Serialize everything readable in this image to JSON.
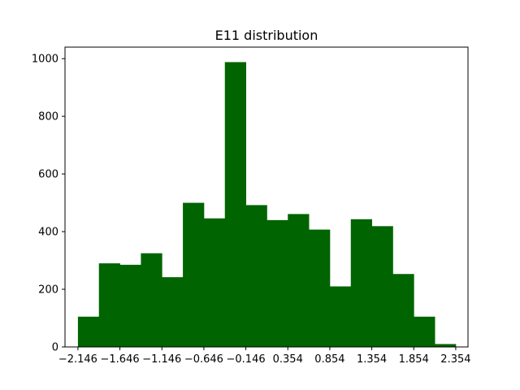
{
  "chart_data": {
    "type": "bar",
    "title": "E11 distribution",
    "xlabel": "",
    "ylabel": "",
    "bar_color": "#006400",
    "axis_color": "#000000",
    "xlim": [
      -2.3,
      2.5
    ],
    "ylim": [
      0,
      1040
    ],
    "bin_start": -2.146,
    "bin_width": 0.25,
    "counts": [
      105,
      290,
      285,
      325,
      242,
      500,
      446,
      988,
      492,
      440,
      461,
      407,
      210,
      443,
      419,
      253,
      105,
      10
    ],
    "x_ticks": [
      {
        "value": -2.146,
        "label": "−2.146"
      },
      {
        "value": -1.646,
        "label": "−1.646"
      },
      {
        "value": -1.146,
        "label": "−1.146"
      },
      {
        "value": -0.646,
        "label": "−0.646"
      },
      {
        "value": -0.146,
        "label": "−0.146"
      },
      {
        "value": 0.354,
        "label": "0.354"
      },
      {
        "value": 0.854,
        "label": "0.854"
      },
      {
        "value": 1.354,
        "label": "1.354"
      },
      {
        "value": 1.854,
        "label": "1.854"
      },
      {
        "value": 2.354,
        "label": "2.354"
      }
    ],
    "y_ticks": [
      {
        "value": 0,
        "label": "0"
      },
      {
        "value": 200,
        "label": "200"
      },
      {
        "value": 400,
        "label": "400"
      },
      {
        "value": 600,
        "label": "600"
      },
      {
        "value": 800,
        "label": "800"
      },
      {
        "value": 1000,
        "label": "1000"
      }
    ]
  }
}
